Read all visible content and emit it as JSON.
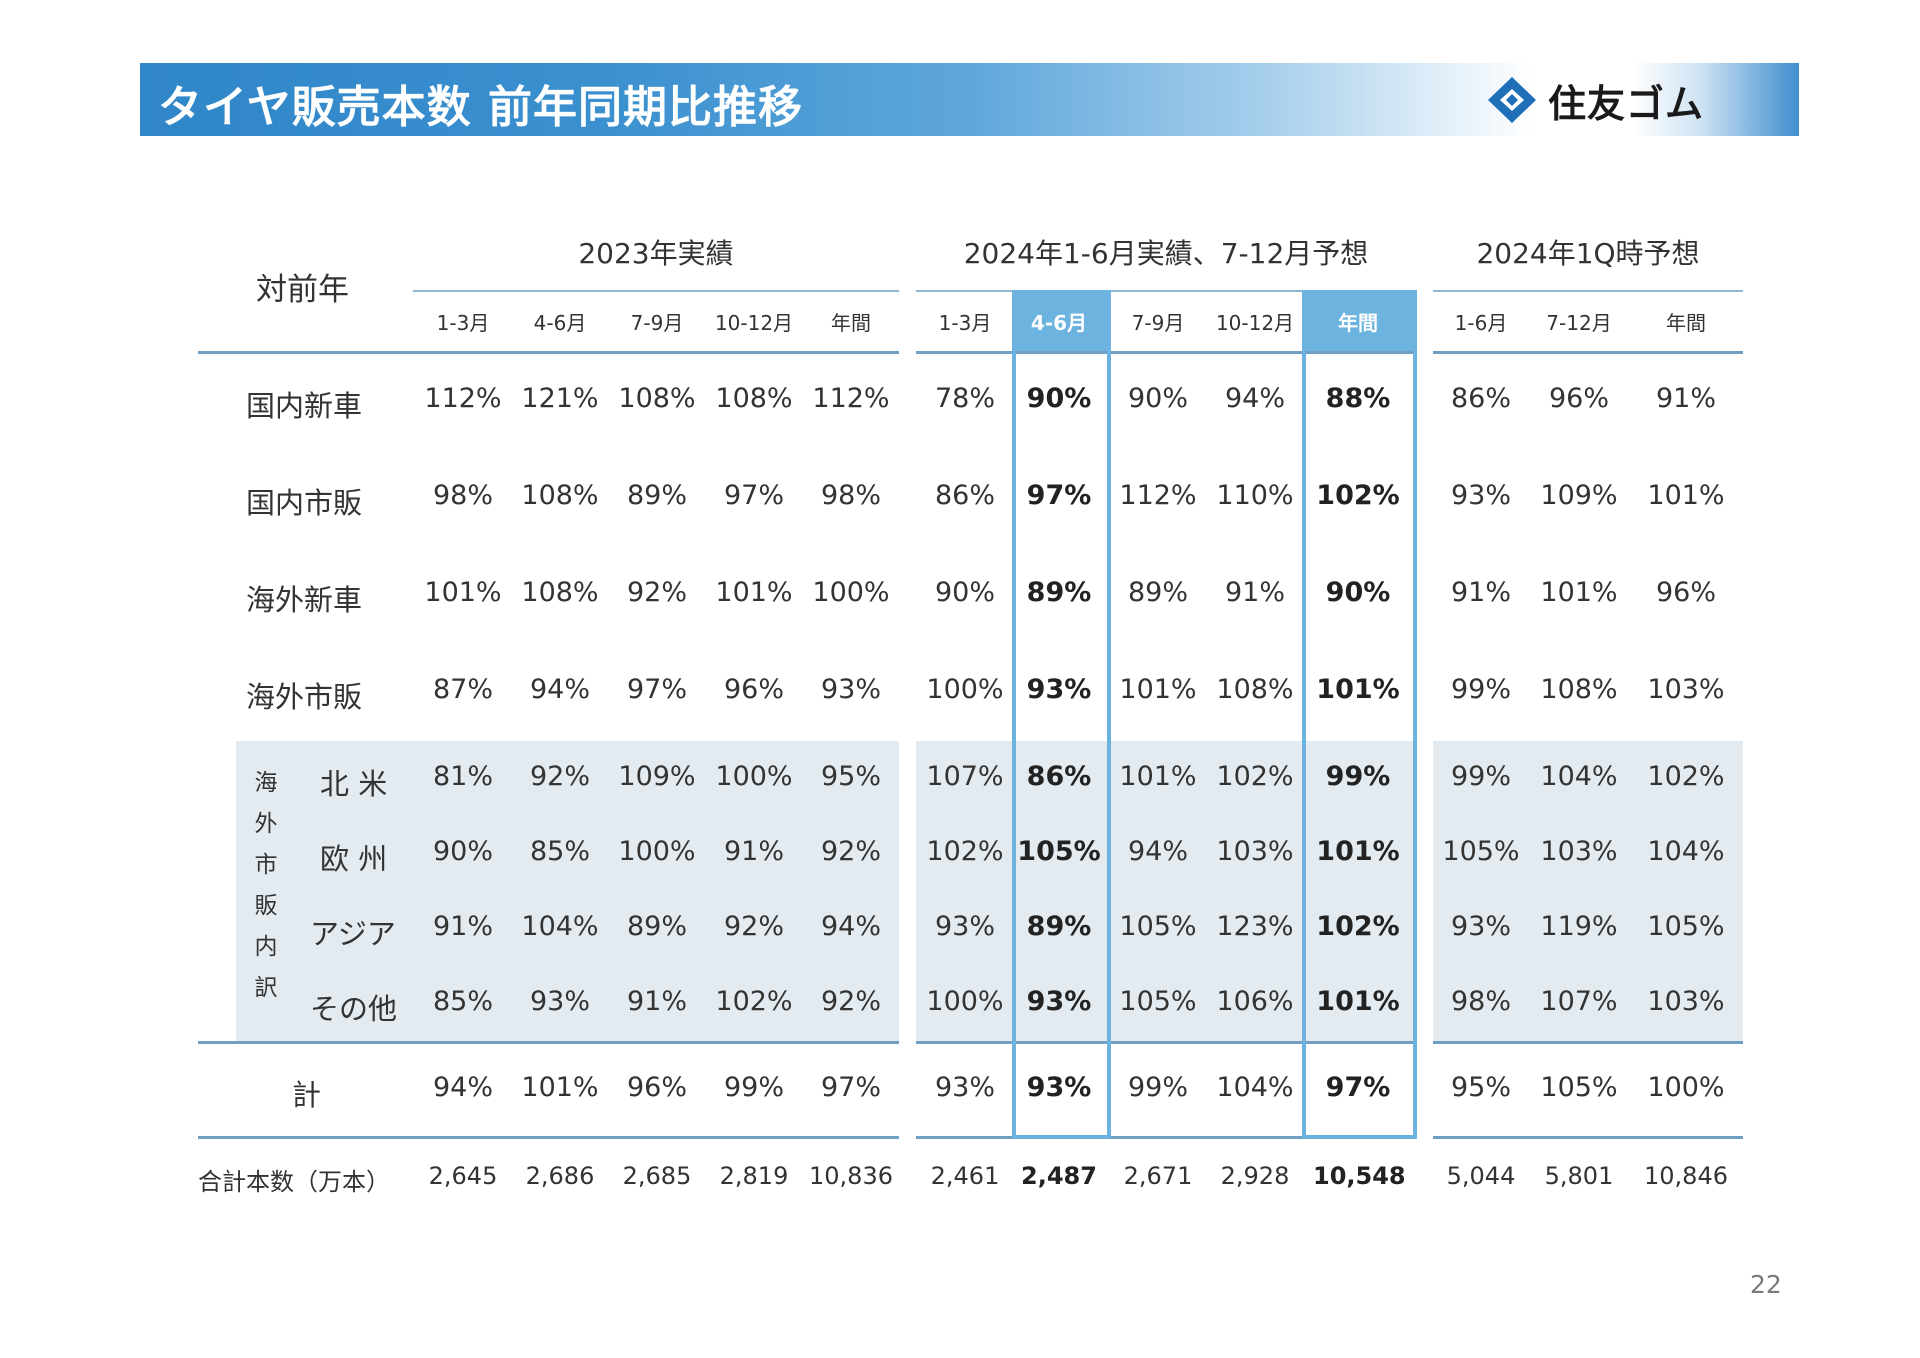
{
  "header": {
    "title": "タイヤ販売本数 前年同期比推移",
    "logo_text": "住友ゴム"
  },
  "table": {
    "corner_label": "対前年",
    "groups": [
      "2023年実績",
      "2024年1-6月実績、7-12月予想",
      "2024年1Q時予想"
    ],
    "subheaders": [
      "1-3月",
      "4-6月",
      "7-9月",
      "10-12月",
      "年間",
      "1-3月",
      "4-6月",
      "7-9月",
      "10-12月",
      "年間",
      "1-6月",
      "7-12月",
      "年間"
    ],
    "breakdown_label": [
      "海",
      "外",
      "市",
      "販",
      "内",
      "訳"
    ],
    "rows": [
      {
        "label": "国内新車",
        "values": [
          "112%",
          "121%",
          "108%",
          "108%",
          "112%",
          "78%",
          "90%",
          "90%",
          "94%",
          "88%",
          "86%",
          "96%",
          "91%"
        ]
      },
      {
        "label": "国内市販",
        "values": [
          "98%",
          "108%",
          "89%",
          "97%",
          "98%",
          "86%",
          "97%",
          "112%",
          "110%",
          "102%",
          "93%",
          "109%",
          "101%"
        ]
      },
      {
        "label": "海外新車",
        "values": [
          "101%",
          "108%",
          "92%",
          "101%",
          "100%",
          "90%",
          "89%",
          "89%",
          "91%",
          "90%",
          "91%",
          "101%",
          "96%"
        ]
      },
      {
        "label": "海外市販",
        "values": [
          "87%",
          "94%",
          "97%",
          "96%",
          "93%",
          "100%",
          "93%",
          "101%",
          "108%",
          "101%",
          "99%",
          "108%",
          "103%"
        ]
      },
      {
        "label": "北 米",
        "values": [
          "81%",
          "92%",
          "109%",
          "100%",
          "95%",
          "107%",
          "86%",
          "101%",
          "102%",
          "99%",
          "99%",
          "104%",
          "102%"
        ]
      },
      {
        "label": "欧 州",
        "values": [
          "90%",
          "85%",
          "100%",
          "91%",
          "92%",
          "102%",
          "105%",
          "94%",
          "103%",
          "101%",
          "105%",
          "103%",
          "104%"
        ]
      },
      {
        "label": "アジア",
        "values": [
          "91%",
          "104%",
          "89%",
          "92%",
          "94%",
          "93%",
          "89%",
          "105%",
          "123%",
          "102%",
          "93%",
          "119%",
          "105%"
        ]
      },
      {
        "label": "その他",
        "values": [
          "85%",
          "93%",
          "91%",
          "102%",
          "92%",
          "100%",
          "93%",
          "105%",
          "106%",
          "101%",
          "98%",
          "107%",
          "103%"
        ]
      },
      {
        "label": "計",
        "values": [
          "94%",
          "101%",
          "96%",
          "99%",
          "97%",
          "93%",
          "93%",
          "99%",
          "104%",
          "97%",
          "95%",
          "105%",
          "100%"
        ]
      },
      {
        "label": "合計本数（万本）",
        "values": [
          "2,645",
          "2,686",
          "2,685",
          "2,819",
          "10,836",
          "2,461",
          "2,487",
          "2,671",
          "2,928",
          "10,548",
          "5,044",
          "5,801",
          "10,846"
        ]
      }
    ]
  },
  "page_number": "22",
  "colors": {
    "brand_blue": "#2f86c8",
    "highlight": "#6cb3e0",
    "shade": "#e3ebf1"
  }
}
